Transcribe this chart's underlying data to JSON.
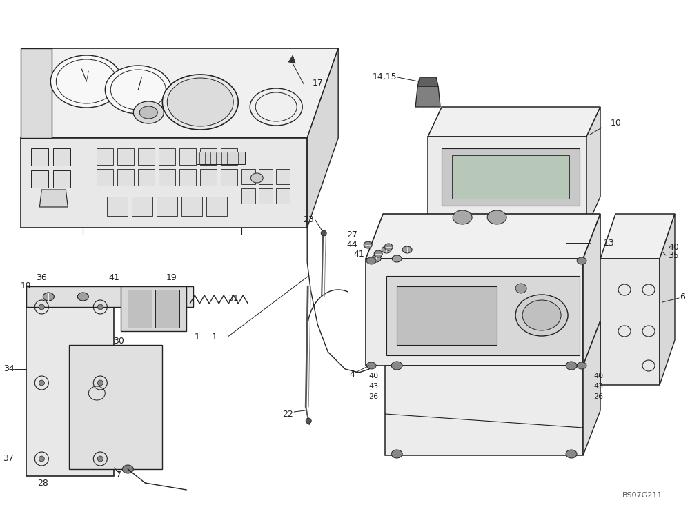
{
  "bg_color": "#ffffff",
  "line_color": "#222222",
  "text_color": "#222222",
  "watermark": "BS07G211",
  "figsize": [
    10.0,
    7.32
  ],
  "dpi": 100
}
